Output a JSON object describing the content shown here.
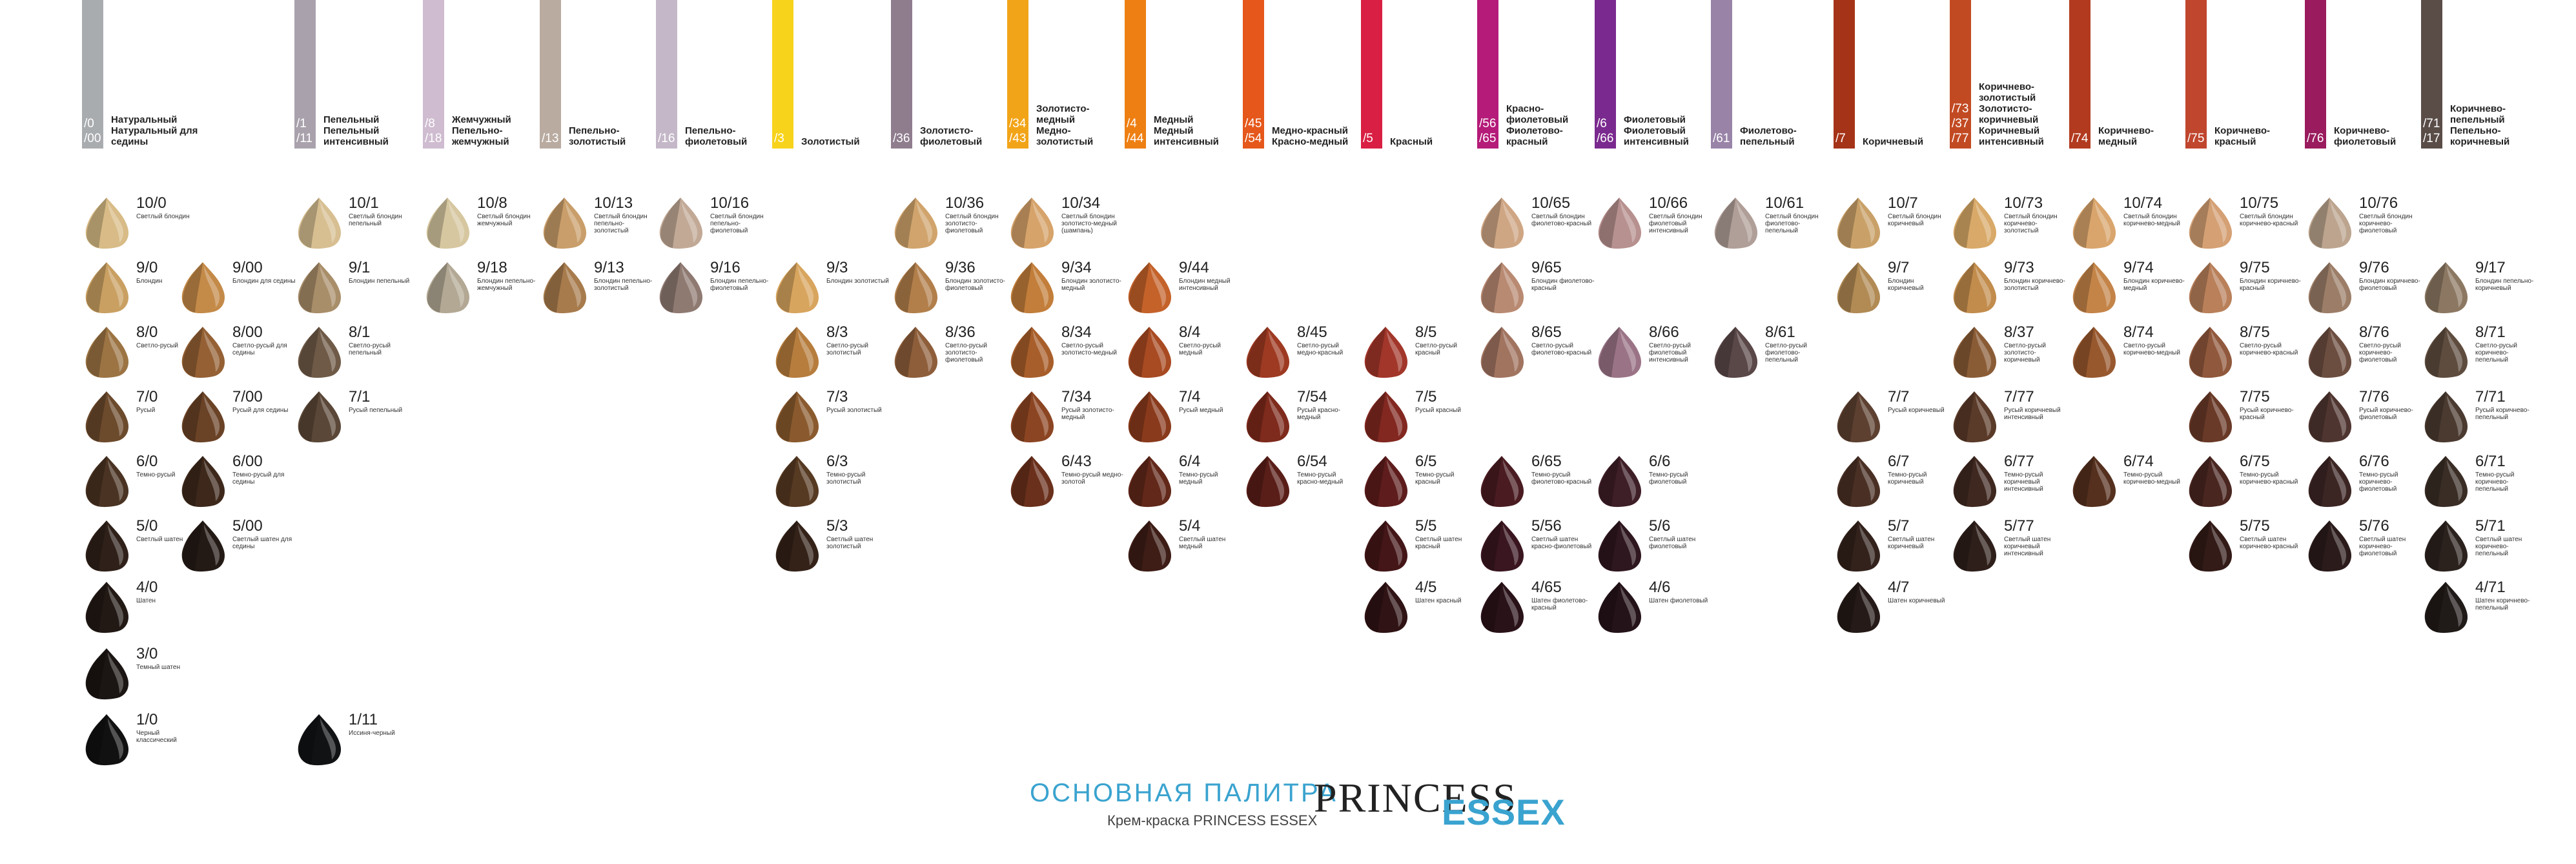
{
  "footer": {
    "title": "ОСНОВНАЯ ПАЛИТРА",
    "subtitle": "Крем-краска PRINCESS ESSEX",
    "brand_main": "PRINCESS",
    "brand_sub": "ESSEX"
  },
  "columns": [
    {
      "code": "/0\n/00",
      "name": "Натуральный\nНатуральный для седины",
      "color": "#a9acaf",
      "shades": [
        {
          "num": "10/0",
          "desc": "Светлый блондин",
          "slot": 0,
          "hair": "#d8bb86"
        },
        {
          "num": "9/0",
          "desc": "Блондин",
          "slot": 1,
          "hair": "#c9a062"
        },
        {
          "num": "8/0",
          "desc": "Светло-русый",
          "slot": 2,
          "hair": "#9c7443"
        },
        {
          "num": "7/0",
          "desc": "Русый",
          "slot": 3,
          "hair": "#6c4a2c"
        },
        {
          "num": "6/0",
          "desc": "Темно-русый",
          "slot": 4,
          "hair": "#4a3322"
        },
        {
          "num": "5/0",
          "desc": "Светлый шатен",
          "slot": 5,
          "hair": "#2f2119"
        },
        {
          "num": "4/0",
          "desc": "Шатен",
          "slot": 6,
          "hair": "#221915"
        },
        {
          "num": "3/0",
          "desc": "Темный шатен",
          "slot": 7,
          "hair": "#1b1513"
        },
        {
          "num": "1/0",
          "desc": "Черный классический",
          "slot": 8,
          "hair": "#121111"
        }
      ]
    },
    {
      "code": "",
      "name": "",
      "color": "",
      "shades": [
        {
          "num": "9/00",
          "desc": "Блондин для седины",
          "slot": 1,
          "hair": "#c48a48"
        },
        {
          "num": "8/00",
          "desc": "Светло-русый для седины",
          "slot": 2,
          "hair": "#946034"
        },
        {
          "num": "7/00",
          "desc": "Русый для седины",
          "slot": 3,
          "hair": "#6a4226"
        },
        {
          "num": "6/00",
          "desc": "Темно-русый для седины",
          "slot": 4,
          "hair": "#3d281b"
        },
        {
          "num": "5/00",
          "desc": "Светлый шатен для седины",
          "slot": 5,
          "hair": "#241a15"
        }
      ]
    },
    {
      "code": "/1\n/11",
      "name": "Пепельный\nПепельный интенсивный",
      "color": "#a9a2ac",
      "shades": [
        {
          "num": "10/1",
          "desc": "Светлый блондин пепельный",
          "slot": 0,
          "hair": "#d7bf92"
        },
        {
          "num": "9/1",
          "desc": "Блондин пепельный",
          "slot": 1,
          "hair": "#a98e6a"
        },
        {
          "num": "8/1",
          "desc": "Светло-русый пепельный",
          "slot": 2,
          "hair": "#6f5a47"
        },
        {
          "num": "7/1",
          "desc": "Русый пепельный",
          "slot": 3,
          "hair": "#5a4737"
        },
        {
          "num": "1/11",
          "desc": "Иссиня-черный",
          "slot": 8,
          "hair": "#111214"
        }
      ]
    },
    {
      "code": "/8\n/18",
      "name": "Жемчужный\nПепельно-жемчужный",
      "color": "#cfbcd0",
      "shades": [
        {
          "num": "10/8",
          "desc": "Светлый блондин жемчужный",
          "slot": 0,
          "hair": "#d6c7a0"
        },
        {
          "num": "9/18",
          "desc": "Блондин пепельно-жемчужный",
          "slot": 1,
          "hair": "#b3a894"
        }
      ]
    },
    {
      "code": "/13",
      "name": "Пепельно-золотистый",
      "color": "#b9aba0",
      "shades": [
        {
          "num": "10/13",
          "desc": "Светлый блондин пепельно-золотистый",
          "slot": 0,
          "hair": "#c99e6a"
        },
        {
          "num": "9/13",
          "desc": "Блондин пепельно-золотистый",
          "slot": 1,
          "hair": "#a77b4c"
        }
      ]
    },
    {
      "code": "/16",
      "name": "Пепельно-фиолетовый",
      "color": "#c4b8c8",
      "shades": [
        {
          "num": "10/16",
          "desc": "Светлый блондин пепельно-фиолетовый",
          "slot": 0,
          "hair": "#c2a996"
        },
        {
          "num": "9/16",
          "desc": "Блондин пепельно-фиолетовый",
          "slot": 1,
          "hair": "#8f7a72"
        }
      ]
    },
    {
      "code": "/3",
      "name": "Золотистый",
      "color": "#f7d31b",
      "shades": [
        {
          "num": "9/3",
          "desc": "Блондин золотистый",
          "slot": 1,
          "hair": "#d8a55e"
        },
        {
          "num": "8/3",
          "desc": "Светло-русый золотистый",
          "slot": 2,
          "hair": "#b67d3d"
        },
        {
          "num": "7/3",
          "desc": "Русый золотистый",
          "slot": 3,
          "hair": "#8a5a2e"
        },
        {
          "num": "6/3",
          "desc": "Темно-русый золотистый",
          "slot": 4,
          "hair": "#573a22"
        },
        {
          "num": "5/3",
          "desc": "Светлый шатен золотистый",
          "slot": 5,
          "hair": "#342218"
        }
      ]
    },
    {
      "code": "/36",
      "name": "Золотисто-фиолетовый",
      "color": "#8f7d8e",
      "shades": [
        {
          "num": "10/36",
          "desc": "Светлый блондин золотисто-фиолетовый",
          "slot": 0,
          "hair": "#d0a46c"
        },
        {
          "num": "9/36",
          "desc": "Блондин золотисто-фиолетовый",
          "slot": 1,
          "hair": "#b27f4b"
        },
        {
          "num": "8/36",
          "desc": "Светло-русый золотисто-фиолетовый",
          "slot": 2,
          "hair": "#8e5e3a"
        }
      ]
    },
    {
      "code": "/34\n/43",
      "name": "Золотисто-медный\nМедно-золотистый",
      "color": "#f2a418",
      "shades": [
        {
          "num": "10/34",
          "desc": "Светлый блондин золотисто-медный (шампань)",
          "slot": 0,
          "hair": "#d6a36a"
        },
        {
          "num": "9/34",
          "desc": "Блондин золотисто-медный",
          "slot": 1,
          "hair": "#c27e3a"
        },
        {
          "num": "8/34",
          "desc": "Светло-русый золотисто-медный",
          "slot": 2,
          "hair": "#a85e2a"
        },
        {
          "num": "7/34",
          "desc": "Русый золотисто-медный",
          "slot": 3,
          "hair": "#8c4522"
        },
        {
          "num": "6/43",
          "desc": "Темно-русый медно-золотой",
          "slot": 4,
          "hair": "#6a301c"
        }
      ]
    },
    {
      "code": "/4\n/44",
      "name": "Медный\nМедный интенсивный",
      "color": "#ee7f12",
      "shades": [
        {
          "num": "9/44",
          "desc": "Блондин медный интенсивный",
          "slot": 1,
          "hair": "#c4622a"
        },
        {
          "num": "8/4",
          "desc": "Светло-русый медный",
          "slot": 2,
          "hair": "#a84a22"
        },
        {
          "num": "7/4",
          "desc": "Русый медный",
          "slot": 3,
          "hair": "#8a3a1c"
        },
        {
          "num": "6/4",
          "desc": "Темно-русый медный",
          "slot": 4,
          "hair": "#62281a"
        },
        {
          "num": "5/4",
          "desc": "Светлый шатен медный",
          "slot": 5,
          "hair": "#3d1d16"
        }
      ]
    },
    {
      "code": "/45\n/54",
      "name": "Медно-красный\nКрасно-медный",
      "color": "#e5571a",
      "shades": [
        {
          "num": "8/45",
          "desc": "Светло-русый медно-красный",
          "slot": 2,
          "hair": "#9e3a22"
        },
        {
          "num": "7/54",
          "desc": "Русый красно-медный",
          "slot": 3,
          "hair": "#7e2a1c"
        },
        {
          "num": "6/54",
          "desc": "Темно-русый красно-медный",
          "slot": 4,
          "hair": "#5a1e18"
        }
      ]
    },
    {
      "code": "/5",
      "name": "Красный",
      "color": "#d91f43",
      "shades": [
        {
          "num": "8/5",
          "desc": "Светло-русый красный",
          "slot": 2,
          "hair": "#a2362a"
        },
        {
          "num": "7/5",
          "desc": "Русый красный",
          "slot": 3,
          "hair": "#822820"
        },
        {
          "num": "6/5",
          "desc": "Темно-русый красный",
          "slot": 4,
          "hair": "#5e1c1c"
        },
        {
          "num": "5/5",
          "desc": "Светлый шатен красный",
          "slot": 5,
          "hair": "#441618"
        },
        {
          "num": "4/5",
          "desc": "Шатен красный",
          "slot": 6,
          "hair": "#301314"
        }
      ]
    },
    {
      "code": "/56\n/65",
      "name": "Красно-фиолетовый\nФиолетово-красный",
      "color": "#b51b78",
      "shades": [
        {
          "num": "10/65",
          "desc": "Светлый блондин фиолетово-красный",
          "slot": 0,
          "hair": "#cfa684"
        },
        {
          "num": "9/65",
          "desc": "Блондин фиолетово-красный",
          "slot": 1,
          "hair": "#b98a72"
        },
        {
          "num": "8/65",
          "desc": "Светло-русый фиолетово-красный",
          "slot": 2,
          "hair": "#a17460"
        },
        {
          "num": "6/65",
          "desc": "Темно-русый фиолетово-красный",
          "slot": 4,
          "hair": "#4a1c22"
        },
        {
          "num": "5/56",
          "desc": "Светлый шатен красно-фиолетовый",
          "slot": 5,
          "hair": "#3a1620"
        },
        {
          "num": "4/65",
          "desc": "Шатен фиолетово-красный",
          "slot": 6,
          "hair": "#2a1219"
        }
      ]
    },
    {
      "code": "/6\n/66",
      "name": "Фиолетовый\nФиолетовый интенсивный",
      "color": "#7a2a8e",
      "shades": [
        {
          "num": "10/66",
          "desc": "Светлый блондин фиолетовый интенсивный",
          "slot": 0,
          "hair": "#b7918f"
        },
        {
          "num": "8/66",
          "desc": "Светло-русый фиолетовый интенсивный",
          "slot": 2,
          "hair": "#9a7486"
        },
        {
          "num": "6/6",
          "desc": "Темно-русый фиолетовый",
          "slot": 4,
          "hair": "#3e1e27"
        },
        {
          "num": "5/6",
          "desc": "Светлый шатен фиолетовый",
          "slot": 5,
          "hair": "#2f171f"
        },
        {
          "num": "4/6",
          "desc": "Шатен фиолетовый",
          "slot": 6,
          "hair": "#241318"
        }
      ]
    },
    {
      "code": "/61",
      "name": "Фиолетово-пепельный",
      "color": "#9984a8",
      "shades": [
        {
          "num": "10/61",
          "desc": "Светлый блондин фиолетово-пепельный",
          "slot": 0,
          "hair": "#b09e98"
        },
        {
          "num": "8/61",
          "desc": "Светло-русый фиолетово-пепельный",
          "slot": 2,
          "hair": "#5a4748"
        }
      ]
    },
    {
      "code": "/7",
      "name": "Коричневый",
      "color": "#a53318",
      "shades": [
        {
          "num": "10/7",
          "desc": "Светлый блондин коричневый",
          "slot": 0,
          "hair": "#c9a168"
        },
        {
          "num": "9/7",
          "desc": "Блондин коричневый",
          "slot": 1,
          "hair": "#b18a54"
        },
        {
          "num": "7/7",
          "desc": "Русый коричневый",
          "slot": 3,
          "hair": "#5d4030"
        },
        {
          "num": "6/7",
          "desc": "Темно-русый коричневый",
          "slot": 4,
          "hair": "#4a3024"
        },
        {
          "num": "5/7",
          "desc": "Светлый шатен коричневый",
          "slot": 5,
          "hair": "#33221c"
        },
        {
          "num": "4/7",
          "desc": "Шатен коричневый",
          "slot": 6,
          "hair": "#251a17"
        }
      ]
    },
    {
      "code": "/73\n/37\n/77",
      "name": "Коричнево-золотистый\nЗолотисто-коричневый\nКоричневый интенсивный",
      "color": "#c24a22",
      "shades": [
        {
          "num": "10/73",
          "desc": "Светлый блондин коричнево-золотистый",
          "slot": 0,
          "hair": "#d8a968"
        },
        {
          "num": "9/73",
          "desc": "Блондин коричнево-золотистый",
          "slot": 1,
          "hair": "#c28c4c"
        },
        {
          "num": "8/37",
          "desc": "Светло-русый золотисто-коричневый",
          "slot": 2,
          "hair": "#8a5c36"
        },
        {
          "num": "7/77",
          "desc": "Русый коричневый интенсивный",
          "slot": 3,
          "hair": "#5a3a28"
        },
        {
          "num": "6/77",
          "desc": "Темно-русый коричневый интенсивный",
          "slot": 4,
          "hair": "#3f2820"
        },
        {
          "num": "5/77",
          "desc": "Светлый шатен коричневый интенсивный",
          "slot": 5,
          "hair": "#2e1f1a"
        }
      ]
    },
    {
      "code": "/74",
      "name": "Коричнево-медный",
      "color": "#b23a1f",
      "shades": [
        {
          "num": "10/74",
          "desc": "Светлый блондин коричнево-медный",
          "slot": 0,
          "hair": "#d9a56c"
        },
        {
          "num": "9/74",
          "desc": "Блондин коричнево-медный",
          "slot": 1,
          "hair": "#c48448"
        },
        {
          "num": "8/74",
          "desc": "Светло-русый коричнево-медный",
          "slot": 2,
          "hair": "#98582e"
        },
        {
          "num": "6/74",
          "desc": "Темно-русый коричнево-медный",
          "slot": 4,
          "hair": "#55301e"
        }
      ]
    },
    {
      "code": "/75",
      "name": "Коричнево-красный",
      "color": "#c0462e",
      "shades": [
        {
          "num": "10/75",
          "desc": "Светлый блондин коричнево-красный",
          "slot": 0,
          "hair": "#d4a074"
        },
        {
          "num": "9/75",
          "desc": "Блондин коричнево-красный",
          "slot": 1,
          "hair": "#b9805a"
        },
        {
          "num": "8/75",
          "desc": "Светло-русый коричнево-красный",
          "slot": 2,
          "hair": "#90583c"
        },
        {
          "num": "7/75",
          "desc": "Русый коричнево-красный",
          "slot": 3,
          "hair": "#6a3a28"
        },
        {
          "num": "6/75",
          "desc": "Темно-русый коричнево-красный",
          "slot": 4,
          "hair": "#4a2620"
        },
        {
          "num": "5/75",
          "desc": "Светлый шатен коричнево-красный",
          "slot": 5,
          "hair": "#331b18"
        }
      ]
    },
    {
      "code": "/76",
      "name": "Коричнево-фиолетовый",
      "color": "#9a1b5e",
      "shades": [
        {
          "num": "10/76",
          "desc": "Светлый блондин коричнево-фиолетовый",
          "slot": 0,
          "hair": "#bca48e"
        },
        {
          "num": "9/76",
          "desc": "Блондин коричнево-фиолетовый",
          "slot": 1,
          "hair": "#9c7e68"
        },
        {
          "num": "8/76",
          "desc": "Светло-русый коричнево-фиолетовый",
          "slot": 2,
          "hair": "#6c4e40"
        },
        {
          "num": "7/76",
          "desc": "Русый коричнево-фиолетовый",
          "slot": 3,
          "hair": "#4f3530"
        },
        {
          "num": "6/76",
          "desc": "Темно-русый коричнево-фиолетовый",
          "slot": 4,
          "hair": "#3c2624"
        },
        {
          "num": "5/76",
          "desc": "Светлый шатен коричнево-фиолетовый",
          "slot": 5,
          "hair": "#2b1b1b"
        }
      ]
    },
    {
      "code": "/71\n/17",
      "name": "Коричнево-пепельный\nПепельно-коричневый",
      "color": "#5a4d48",
      "shades": [
        {
          "num": "9/17",
          "desc": "Блондин пепельно-коричневый",
          "slot": 1,
          "hair": "#8c7862"
        },
        {
          "num": "8/71",
          "desc": "Светло-русый коричнево-пепельный",
          "slot": 2,
          "hair": "#5e4c3e"
        },
        {
          "num": "7/71",
          "desc": "Русый коричнево-пепельный",
          "slot": 3,
          "hair": "#4a3a30"
        },
        {
          "num": "6/71",
          "desc": "Темно-русый коричнево-пепельный",
          "slot": 4,
          "hair": "#3a2d26"
        },
        {
          "num": "5/71",
          "desc": "Светлый шатен коричнево-пепельный",
          "slot": 5,
          "hair": "#2b221e"
        },
        {
          "num": "4/71",
          "desc": "Шатен коричнево-пепельный",
          "slot": 6,
          "hair": "#201a18"
        }
      ]
    }
  ]
}
